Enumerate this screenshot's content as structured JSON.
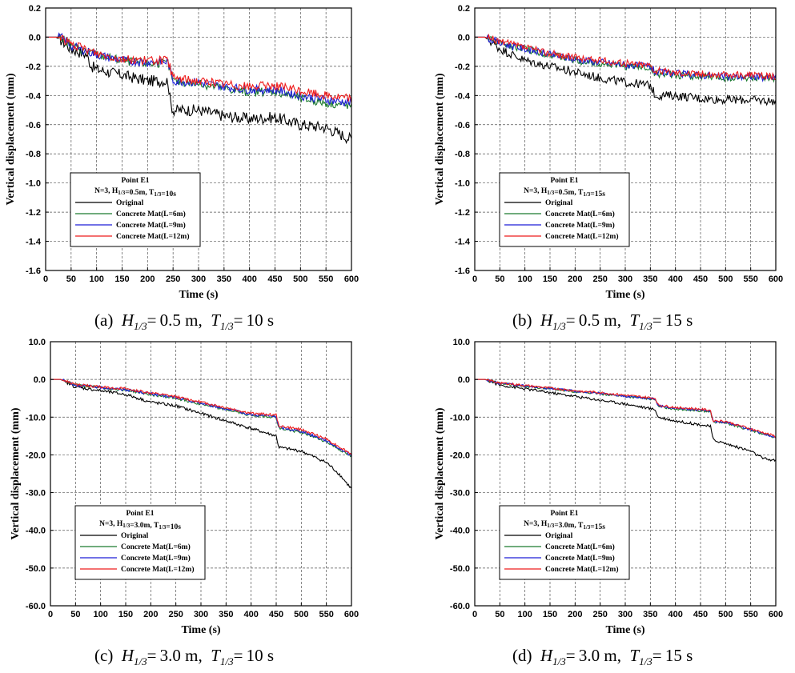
{
  "legend_common": {
    "point": "Point E1",
    "series": [
      "Original",
      "Concrete Mat(L=6m)",
      "Concrete Mat(L=9m)",
      "Concrete Mat(L=12m)"
    ],
    "colors": [
      "#000000",
      "#1a7a2e",
      "#1f1fd6",
      "#ee1c1c"
    ]
  },
  "chart_data": [
    {
      "id": "a",
      "type": "line",
      "caption_label": "(a)",
      "caption_h": "0.5 m",
      "caption_t": "10 s",
      "legend_params": "N=3, H1/3=0.5m, T1/3=10s",
      "xlabel": "Time (s)",
      "ylabel": "Vertical displacement (mm)",
      "xlim": [
        0,
        600
      ],
      "ylim": [
        -1.6,
        0.2
      ],
      "xticks": [
        "0",
        "50",
        "100",
        "150",
        "200",
        "250",
        "300",
        "350",
        "400",
        "450",
        "500",
        "550",
        "600"
      ],
      "yticks": [
        "0.2",
        "0.0",
        "-0.2",
        "-0.4",
        "-0.6",
        "-0.8",
        "-1.0",
        "-1.2",
        "-1.4",
        "-1.6"
      ],
      "series": [
        {
          "name": "Original",
          "x": [
            0,
            20,
            30,
            50,
            80,
            90,
            100,
            150,
            200,
            240,
            245,
            250,
            300,
            350,
            400,
            450,
            500,
            550,
            600
          ],
          "values": [
            0,
            0,
            -0.02,
            -0.08,
            -0.12,
            -0.2,
            -0.22,
            -0.26,
            -0.3,
            -0.3,
            -0.45,
            -0.5,
            -0.5,
            -0.54,
            -0.56,
            -0.55,
            -0.6,
            -0.62,
            -0.7
          ],
          "noise": 0.04
        },
        {
          "name": "Concrete Mat(L=6m)",
          "x": [
            0,
            20,
            30,
            50,
            100,
            150,
            200,
            240,
            250,
            300,
            350,
            400,
            450,
            500,
            550,
            600
          ],
          "values": [
            0,
            0,
            0,
            -0.06,
            -0.12,
            -0.16,
            -0.18,
            -0.18,
            -0.3,
            -0.32,
            -0.35,
            -0.38,
            -0.37,
            -0.42,
            -0.45,
            -0.47
          ],
          "noise": 0.03
        },
        {
          "name": "Concrete Mat(L=9m)",
          "x": [
            0,
            20,
            30,
            50,
            100,
            150,
            200,
            240,
            250,
            300,
            350,
            400,
            450,
            500,
            550,
            600
          ],
          "values": [
            0,
            0,
            0,
            -0.06,
            -0.12,
            -0.16,
            -0.17,
            -0.17,
            -0.3,
            -0.31,
            -0.34,
            -0.36,
            -0.36,
            -0.4,
            -0.43,
            -0.45
          ],
          "noise": 0.03
        },
        {
          "name": "Concrete Mat(L=12m)",
          "x": [
            0,
            20,
            30,
            50,
            100,
            150,
            200,
            240,
            250,
            300,
            350,
            400,
            450,
            500,
            550,
            600
          ],
          "values": [
            0,
            0,
            0,
            -0.05,
            -0.11,
            -0.15,
            -0.16,
            -0.16,
            -0.28,
            -0.3,
            -0.32,
            -0.34,
            -0.33,
            -0.37,
            -0.4,
            -0.42
          ],
          "noise": 0.03
        }
      ]
    },
    {
      "id": "b",
      "type": "line",
      "caption_label": "(b)",
      "caption_h": "0.5 m",
      "caption_t": "15 s",
      "legend_params": "N=3, H1/3=0.5m, T1/3=15s",
      "xlabel": "Time (s)",
      "ylabel": "Vertical displacement (mm)",
      "xlim": [
        0,
        600
      ],
      "ylim": [
        -1.6,
        0.2
      ],
      "xticks": [
        "0",
        "50",
        "100",
        "150",
        "200",
        "250",
        "300",
        "350",
        "400",
        "450",
        "500",
        "550",
        "600"
      ],
      "yticks": [
        "0.2",
        "0.0",
        "-0.2",
        "-0.4",
        "-0.6",
        "-0.8",
        "-1.0",
        "-1.2",
        "-1.4",
        "-1.6"
      ],
      "series": [
        {
          "name": "Original",
          "x": [
            0,
            20,
            50,
            100,
            150,
            200,
            250,
            300,
            350,
            360,
            400,
            450,
            500,
            550,
            600
          ],
          "values": [
            0,
            0,
            -0.08,
            -0.16,
            -0.2,
            -0.24,
            -0.28,
            -0.31,
            -0.33,
            -0.4,
            -0.4,
            -0.42,
            -0.43,
            -0.43,
            -0.44
          ],
          "noise": 0.03
        },
        {
          "name": "Concrete Mat(L=6m)",
          "x": [
            0,
            20,
            50,
            100,
            150,
            200,
            250,
            300,
            350,
            360,
            400,
            450,
            500,
            550,
            600
          ],
          "values": [
            0,
            0,
            -0.04,
            -0.08,
            -0.12,
            -0.16,
            -0.18,
            -0.2,
            -0.21,
            -0.25,
            -0.26,
            -0.27,
            -0.28,
            -0.28,
            -0.29
          ],
          "noise": 0.025
        },
        {
          "name": "Concrete Mat(L=9m)",
          "x": [
            0,
            20,
            50,
            100,
            150,
            200,
            250,
            300,
            350,
            360,
            400,
            450,
            500,
            550,
            600
          ],
          "values": [
            0,
            0,
            -0.04,
            -0.08,
            -0.12,
            -0.15,
            -0.17,
            -0.19,
            -0.2,
            -0.24,
            -0.25,
            -0.26,
            -0.27,
            -0.27,
            -0.28
          ],
          "noise": 0.025
        },
        {
          "name": "Concrete Mat(L=12m)",
          "x": [
            0,
            20,
            50,
            100,
            150,
            200,
            250,
            300,
            350,
            360,
            400,
            450,
            500,
            550,
            600
          ],
          "values": [
            0,
            0,
            -0.03,
            -0.07,
            -0.11,
            -0.14,
            -0.16,
            -0.18,
            -0.19,
            -0.23,
            -0.24,
            -0.25,
            -0.26,
            -0.26,
            -0.27
          ],
          "noise": 0.025
        }
      ]
    },
    {
      "id": "c",
      "type": "line",
      "caption_label": "(c)",
      "caption_h": "3.0 m",
      "caption_t": "10 s",
      "legend_params": "N=3, H1/3=3.0m, T1/3=10s",
      "xlabel": "Time (s)",
      "ylabel": "Vertical displacement (mm)",
      "xlim": [
        0,
        600
      ],
      "ylim": [
        -60,
        10
      ],
      "xticks": [
        "0",
        "50",
        "100",
        "150",
        "200",
        "250",
        "300",
        "350",
        "400",
        "450",
        "500",
        "550",
        "600"
      ],
      "yticks": [
        "10.0",
        "0.0",
        "-10.0",
        "-20.0",
        "-30.0",
        "-40.0",
        "-50.0",
        "-60.0"
      ],
      "series": [
        {
          "name": "Original",
          "x": [
            0,
            20,
            50,
            100,
            150,
            200,
            250,
            300,
            350,
            400,
            450,
            455,
            500,
            550,
            575,
            600
          ],
          "values": [
            0,
            0,
            -2,
            -3,
            -4,
            -6,
            -7,
            -9,
            -11,
            -13,
            -15,
            -18,
            -19,
            -22,
            -25,
            -29
          ],
          "noise": 0.4
        },
        {
          "name": "Concrete Mat(L=6m)",
          "x": [
            0,
            20,
            50,
            100,
            150,
            200,
            250,
            300,
            350,
            400,
            450,
            455,
            500,
            550,
            600
          ],
          "values": [
            0,
            0,
            -1.5,
            -2.2,
            -2.8,
            -4,
            -5,
            -6.5,
            -8,
            -9.5,
            -10,
            -13,
            -14,
            -16.5,
            -20.5
          ],
          "noise": 0.35
        },
        {
          "name": "Concrete Mat(L=9m)",
          "x": [
            0,
            20,
            50,
            100,
            150,
            200,
            250,
            300,
            350,
            400,
            450,
            455,
            500,
            550,
            600
          ],
          "values": [
            0,
            0,
            -1.5,
            -2.1,
            -2.7,
            -3.8,
            -4.8,
            -6.3,
            -7.8,
            -9.3,
            -9.8,
            -12.7,
            -13.7,
            -16.2,
            -20.2
          ],
          "noise": 0.35
        },
        {
          "name": "Concrete Mat(L=12m)",
          "x": [
            0,
            20,
            50,
            100,
            150,
            200,
            250,
            300,
            350,
            400,
            450,
            455,
            500,
            550,
            600
          ],
          "values": [
            0,
            0,
            -1.4,
            -2,
            -2.5,
            -3.6,
            -4.6,
            -6,
            -7.5,
            -9,
            -9.4,
            -12.3,
            -13.3,
            -15.8,
            -19.8
          ],
          "noise": 0.35
        }
      ]
    },
    {
      "id": "d",
      "type": "line",
      "caption_label": "(d)",
      "caption_h": "3.0 m",
      "caption_t": "15 s",
      "legend_params": "N=3, H1/3=3.0m, T1/3=15s",
      "xlabel": "Time (s)",
      "ylabel": "Vertical displacement (mm)",
      "xlim": [
        0,
        600
      ],
      "ylim": [
        -60,
        10
      ],
      "xticks": [
        "0",
        "50",
        "100",
        "150",
        "200",
        "250",
        "300",
        "350",
        "400",
        "450",
        "500",
        "550",
        "600"
      ],
      "yticks": [
        "10.0",
        "0.0",
        "-10.0",
        "-20.0",
        "-30.0",
        "-40.0",
        "-50.0",
        "-60.0"
      ],
      "series": [
        {
          "name": "Original",
          "x": [
            0,
            20,
            50,
            100,
            150,
            200,
            250,
            300,
            360,
            365,
            400,
            450,
            470,
            475,
            500,
            550,
            575,
            600
          ],
          "values": [
            0,
            0,
            -1.5,
            -2.5,
            -3.5,
            -4.5,
            -5.5,
            -6.5,
            -8,
            -10,
            -11,
            -12,
            -12.5,
            -16,
            -17,
            -19,
            -21,
            -21.5
          ],
          "noise": 0.35
        },
        {
          "name": "Concrete Mat(L=6m)",
          "x": [
            0,
            20,
            50,
            100,
            150,
            200,
            250,
            300,
            360,
            365,
            400,
            450,
            470,
            475,
            500,
            550,
            600
          ],
          "values": [
            0,
            0,
            -1,
            -1.8,
            -2.5,
            -3.2,
            -3.8,
            -4.5,
            -5.3,
            -7.2,
            -7.8,
            -8.3,
            -8.6,
            -11.3,
            -11.5,
            -13.5,
            -15.5
          ],
          "noise": 0.3
        },
        {
          "name": "Concrete Mat(L=9m)",
          "x": [
            0,
            20,
            50,
            100,
            150,
            200,
            250,
            300,
            360,
            365,
            400,
            450,
            470,
            475,
            500,
            550,
            600
          ],
          "values": [
            0,
            0,
            -1,
            -1.7,
            -2.4,
            -3.1,
            -3.7,
            -4.4,
            -5.2,
            -7,
            -7.6,
            -8.1,
            -8.4,
            -11.1,
            -11.3,
            -13.3,
            -15.3
          ],
          "noise": 0.3
        },
        {
          "name": "Concrete Mat(L=12m)",
          "x": [
            0,
            20,
            50,
            100,
            150,
            200,
            250,
            300,
            360,
            365,
            400,
            450,
            470,
            475,
            500,
            550,
            600
          ],
          "values": [
            0,
            0,
            -0.9,
            -1.6,
            -2.3,
            -3,
            -3.5,
            -4.2,
            -5,
            -6.8,
            -7.4,
            -7.9,
            -8.2,
            -10.9,
            -11.1,
            -13.1,
            -15.1
          ],
          "noise": 0.3
        }
      ]
    }
  ]
}
